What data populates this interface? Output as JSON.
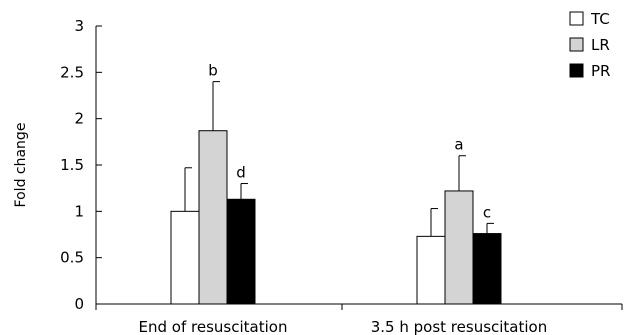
{
  "chart_data": {
    "type": "bar",
    "title": "",
    "xlabel": "",
    "ylabel": "Fold change",
    "ylim": [
      0,
      3
    ],
    "yticks": [
      "0",
      "0.5",
      "1",
      "1.5",
      "2",
      "2.5",
      "3"
    ],
    "categories": [
      "End of resuscitation",
      "3.5 h post resuscitation"
    ],
    "series": [
      {
        "name": "TC",
        "color": "#ffffff",
        "values": [
          1.0,
          0.73
        ],
        "error": [
          0.47,
          0.3
        ],
        "annotations": [
          "",
          ""
        ]
      },
      {
        "name": "LR",
        "color": "#d4d4d4",
        "values": [
          1.87,
          1.22
        ],
        "error": [
          0.53,
          0.38
        ],
        "annotations": [
          "b",
          "a"
        ]
      },
      {
        "name": "PR",
        "color": "#000000",
        "values": [
          1.13,
          0.76
        ],
        "error": [
          0.17,
          0.11
        ],
        "annotations": [
          "d",
          "c"
        ]
      }
    ],
    "grid": false,
    "legend": "top-right"
  }
}
